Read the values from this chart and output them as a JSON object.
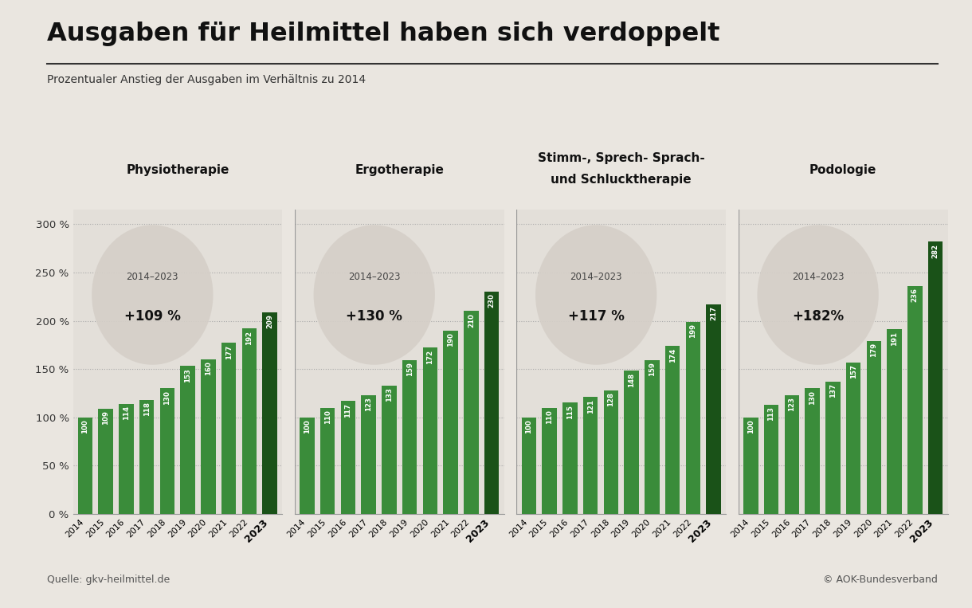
{
  "title": "Ausgaben für Heilmittel haben sich verdoppelt",
  "subtitle": "Prozentualer Anstieg der Ausgaben im Verhältnis zu 2014",
  "source": "Quelle: gkv-heilmittel.de",
  "copyright": "© AOK-Bundesverband",
  "background_color": "#eae6e0",
  "plot_bg_color": "#e3dfd9",
  "bar_color_normal": "#3a8c3a",
  "bar_color_last": "#1a5218",
  "ellipse_color": "#d5cfc8",
  "years": [
    "2014",
    "2015",
    "2016",
    "2017",
    "2018",
    "2019",
    "2020",
    "2021",
    "2022",
    "2023"
  ],
  "groups": [
    {
      "label": "Physiotherapie",
      "label2": "",
      "ann_line1": "2014–2023",
      "ann_line2": "+109 %",
      "values": [
        100,
        109,
        114,
        118,
        130,
        153,
        160,
        177,
        192,
        209
      ]
    },
    {
      "label": "Ergotherapie",
      "label2": "",
      "ann_line1": "2014–2023",
      "ann_line2": "+130 %",
      "values": [
        100,
        110,
        117,
        123,
        133,
        159,
        172,
        190,
        210,
        230
      ]
    },
    {
      "label": "Stimm-, Sprech- Sprach-",
      "label2": "und Schlucktherapie",
      "ann_line1": "2014–2023",
      "ann_line2": "+117 %",
      "values": [
        100,
        110,
        115,
        121,
        128,
        148,
        159,
        174,
        199,
        217
      ]
    },
    {
      "label": "Podologie",
      "label2": "",
      "ann_line1": "2014–2023",
      "ann_line2": "+182%",
      "values": [
        100,
        113,
        123,
        130,
        137,
        157,
        179,
        191,
        236,
        282
      ]
    }
  ],
  "ylim": [
    0,
    315
  ],
  "yticks": [
    0,
    50,
    100,
    150,
    200,
    250,
    300
  ],
  "ytick_labels": [
    "0 %",
    "50 %",
    "100 %",
    "150 %",
    "200 %",
    "250 %",
    "300 %"
  ]
}
